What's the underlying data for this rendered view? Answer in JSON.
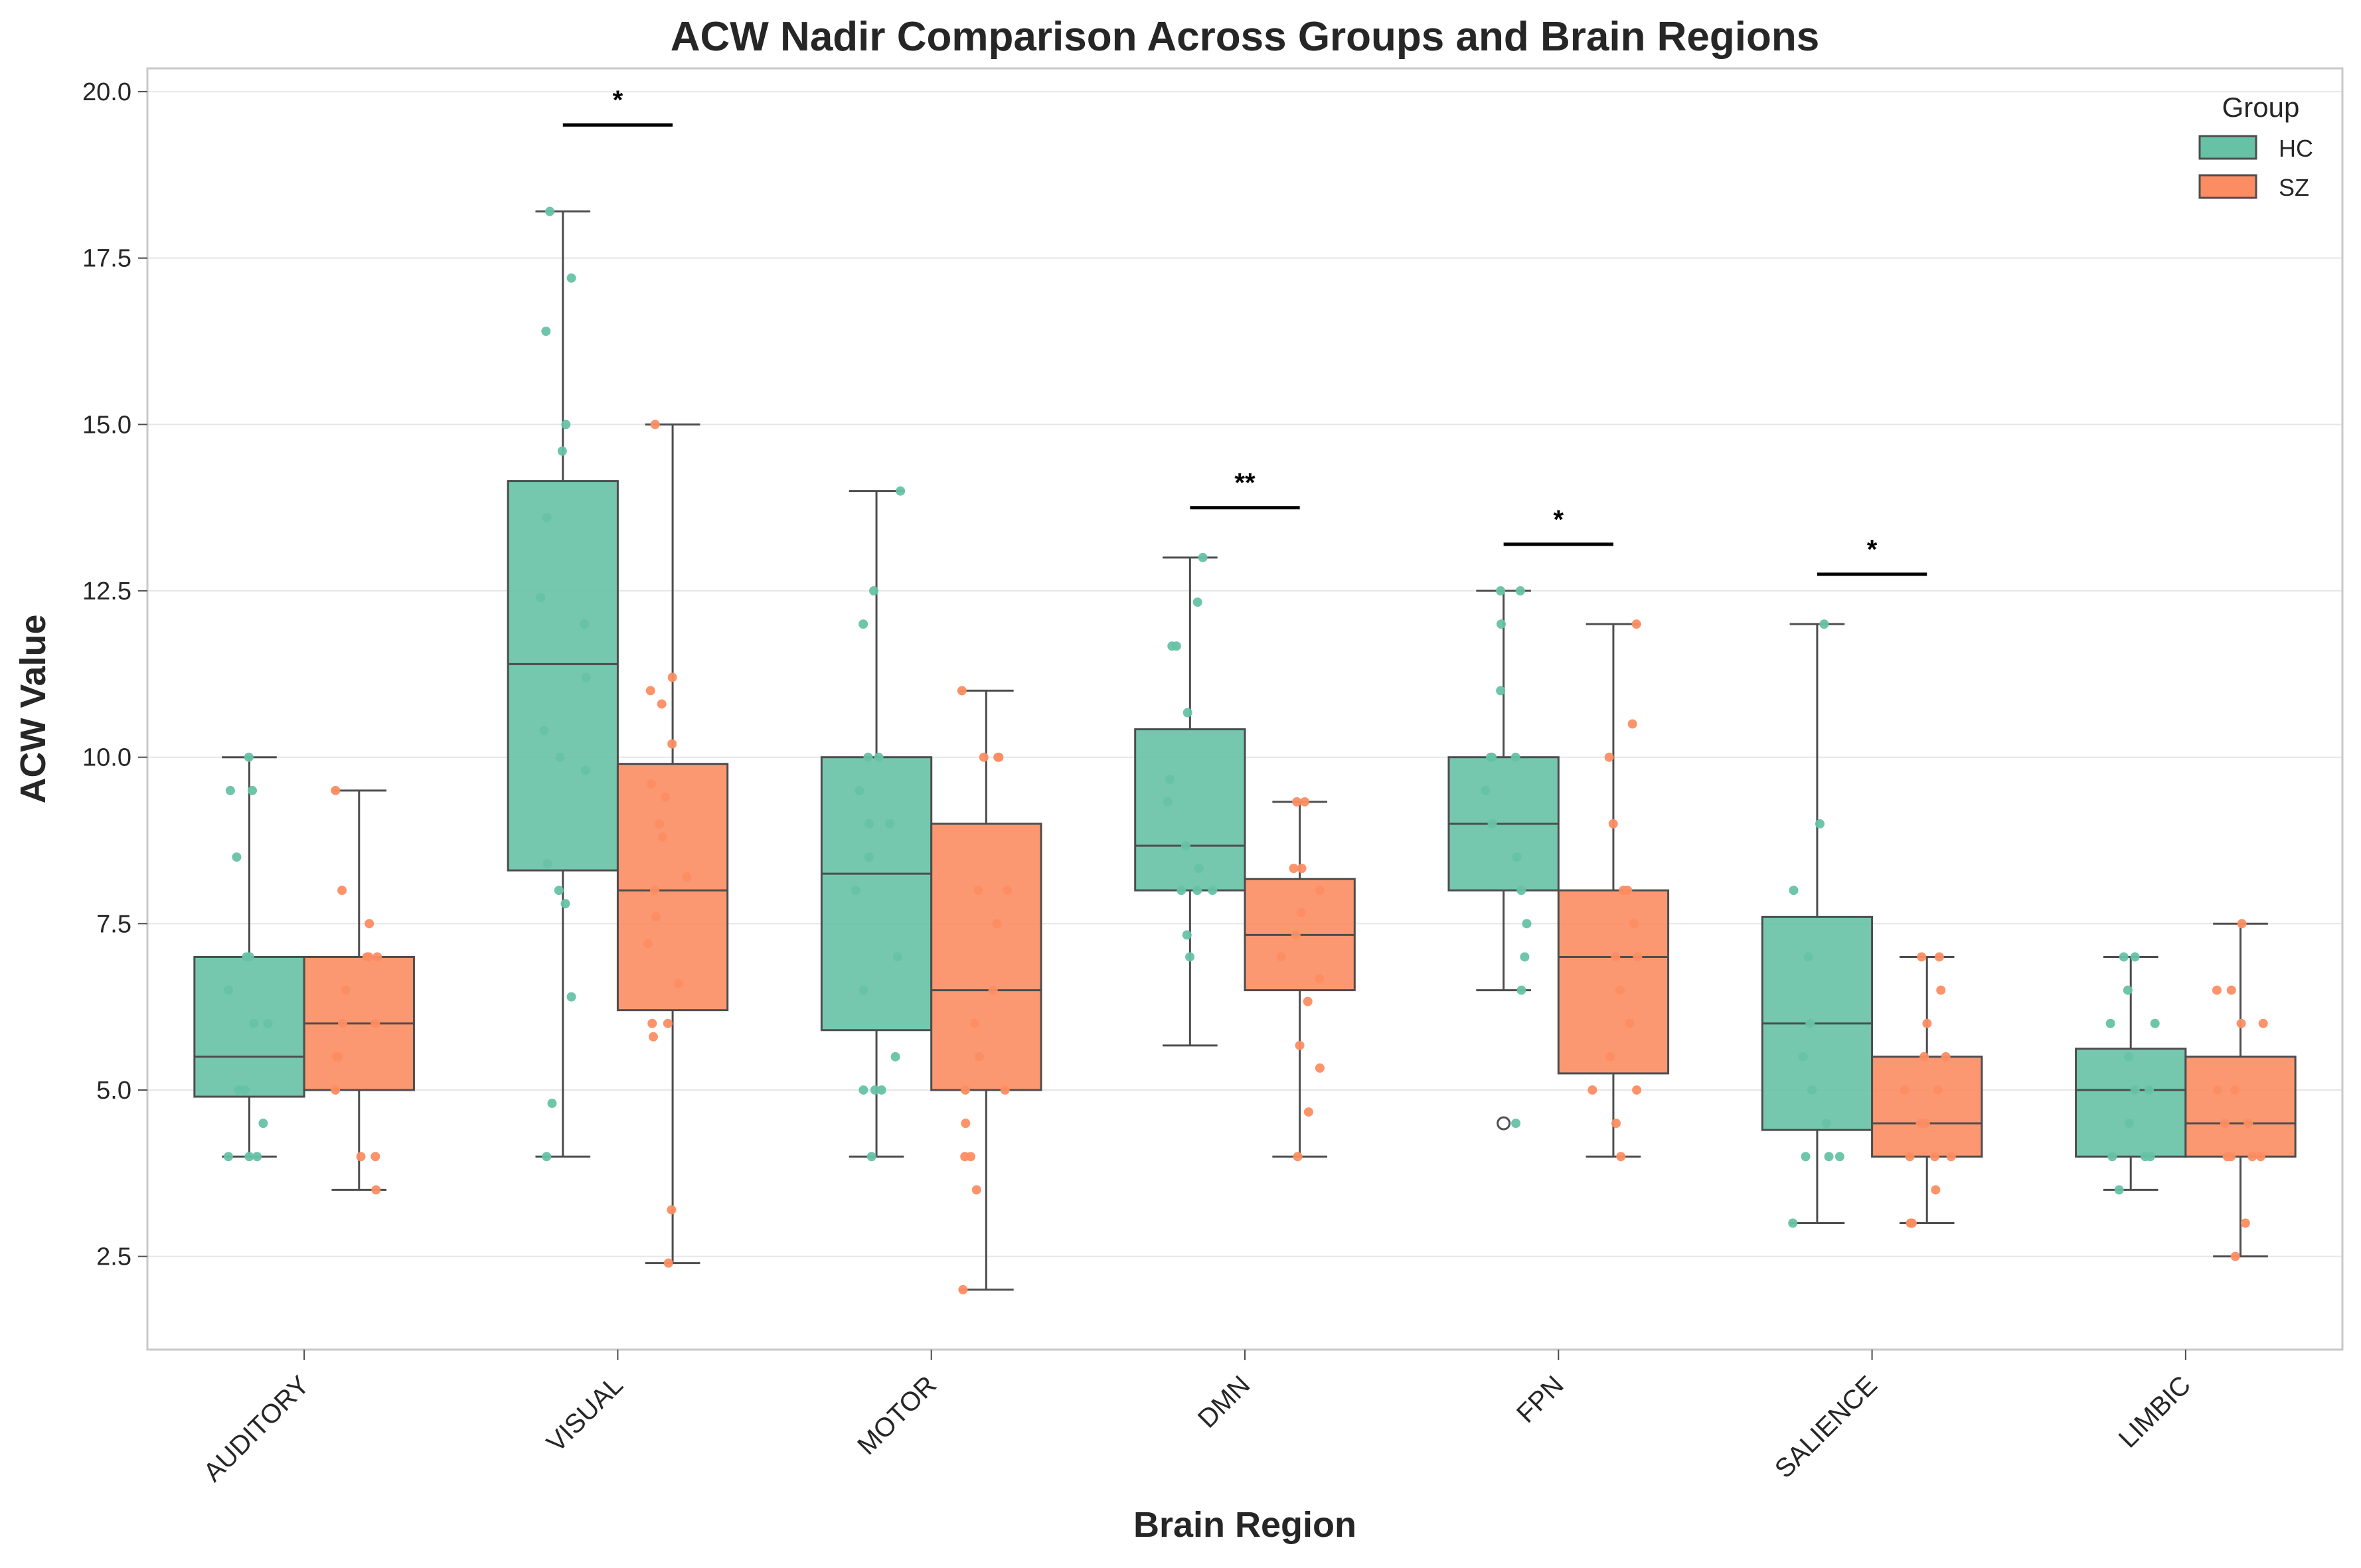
{
  "chart_data": {
    "type": "box",
    "title": "ACW Nadir Comparison Across Groups and Brain Regions",
    "xlabel": "Brain Region",
    "ylabel": "ACW Value",
    "ylim": [
      1.1,
      20.35
    ],
    "yticks": [
      "2.5",
      "5.0",
      "7.5",
      "10.0",
      "12.5",
      "15.0",
      "17.5",
      "20.0"
    ],
    "grid": "horizontal",
    "legend": {
      "title": "Group",
      "placement": "top-right"
    },
    "categories": [
      "AUDITORY",
      "VISUAL",
      "MOTOR",
      "DMN",
      "FPN",
      "SALIENCE",
      "LIMBIC"
    ],
    "series": [
      {
        "name": "HC",
        "color": "#66c2a5",
        "boxes": [
          {
            "q1": 4.9,
            "median": 5.5,
            "q3": 7.0,
            "whisker_low": 4.0,
            "whisker_high": 10.0,
            "outliers": []
          },
          {
            "q1": 8.3,
            "median": 11.4,
            "q3": 14.15,
            "whisker_low": 4.0,
            "whisker_high": 18.2,
            "outliers": []
          },
          {
            "q1": 5.9,
            "median": 8.25,
            "q3": 10.0,
            "whisker_low": 4.0,
            "whisker_high": 14.0,
            "outliers": []
          },
          {
            "q1": 8.0,
            "median": 8.67,
            "q3": 10.42,
            "whisker_low": 5.67,
            "whisker_high": 13.0,
            "outliers": []
          },
          {
            "q1": 8.0,
            "median": 9.0,
            "q3": 10.0,
            "whisker_low": 6.5,
            "whisker_high": 12.5,
            "outliers": [
              4.5
            ]
          },
          {
            "q1": 4.4,
            "median": 6.0,
            "q3": 7.6,
            "whisker_low": 3.0,
            "whisker_high": 12.0,
            "outliers": []
          },
          {
            "q1": 4.0,
            "median": 5.0,
            "q3": 5.62,
            "whisker_low": 3.5,
            "whisker_high": 7.0,
            "outliers": []
          }
        ],
        "points": [
          [
            10.0,
            9.5,
            9.5,
            8.5,
            7.0,
            7.0,
            6.5,
            6.0,
            6.0,
            5.0,
            5.0,
            4.5,
            4.0,
            4.0,
            4.0
          ],
          [
            18.2,
            17.2,
            16.4,
            15.0,
            14.6,
            13.6,
            12.4,
            12.0,
            11.2,
            10.4,
            10.0,
            9.8,
            8.4,
            8.0,
            7.8,
            6.4,
            4.8,
            4.0
          ],
          [
            14.0,
            12.5,
            12.0,
            10.0,
            10.0,
            9.5,
            9.0,
            9.0,
            8.5,
            8.0,
            7.0,
            6.5,
            5.5,
            5.0,
            5.0,
            5.0,
            4.0
          ],
          [
            13.0,
            12.33,
            11.67,
            11.67,
            10.67,
            9.67,
            9.33,
            8.67,
            8.33,
            8.0,
            8.0,
            8.0,
            7.33,
            7.0
          ],
          [
            12.5,
            12.5,
            12.0,
            11.0,
            10.0,
            10.0,
            10.0,
            9.5,
            9.0,
            8.5,
            8.0,
            7.5,
            7.0,
            6.5,
            4.5
          ],
          [
            12.0,
            9.0,
            8.0,
            7.0,
            6.0,
            5.5,
            5.0,
            4.5,
            4.0,
            4.0,
            4.0,
            3.0
          ],
          [
            7.0,
            7.0,
            6.5,
            6.0,
            6.0,
            5.5,
            5.0,
            5.0,
            4.5,
            4.0,
            4.0,
            4.0,
            3.5
          ]
        ]
      },
      {
        "name": "SZ",
        "color": "#fc8d62",
        "boxes": [
          {
            "q1": 5.0,
            "median": 6.0,
            "q3": 7.0,
            "whisker_low": 3.5,
            "whisker_high": 9.5,
            "outliers": []
          },
          {
            "q1": 6.2,
            "median": 8.0,
            "q3": 9.9,
            "whisker_low": 2.4,
            "whisker_high": 15.0,
            "outliers": []
          },
          {
            "q1": 5.0,
            "median": 6.5,
            "q3": 9.0,
            "whisker_low": 2.0,
            "whisker_high": 11.0,
            "outliers": []
          },
          {
            "q1": 6.5,
            "median": 7.33,
            "q3": 8.17,
            "whisker_low": 4.0,
            "whisker_high": 9.33,
            "outliers": []
          },
          {
            "q1": 5.25,
            "median": 7.0,
            "q3": 8.0,
            "whisker_low": 4.0,
            "whisker_high": 12.0,
            "outliers": []
          },
          {
            "q1": 4.0,
            "median": 4.5,
            "q3": 5.5,
            "whisker_low": 3.0,
            "whisker_high": 7.0,
            "outliers": []
          },
          {
            "q1": 4.0,
            "median": 4.5,
            "q3": 5.5,
            "whisker_low": 2.5,
            "whisker_high": 7.5,
            "outliers": []
          }
        ],
        "points": [
          [
            9.5,
            8.0,
            7.5,
            7.0,
            7.0,
            7.0,
            6.5,
            6.0,
            6.0,
            5.5,
            5.5,
            5.0,
            4.0,
            4.0,
            3.5
          ],
          [
            15.0,
            11.2,
            11.0,
            10.8,
            10.2,
            9.6,
            9.4,
            9.0,
            8.8,
            8.2,
            8.0,
            7.6,
            7.2,
            6.6,
            6.0,
            6.0,
            5.8,
            3.2,
            2.4
          ],
          [
            11.0,
            10.0,
            10.0,
            10.0,
            8.0,
            8.0,
            7.5,
            6.5,
            6.0,
            5.5,
            5.0,
            5.0,
            4.5,
            4.0,
            4.0,
            3.5,
            2.0
          ],
          [
            9.33,
            9.33,
            8.33,
            8.33,
            8.0,
            7.67,
            7.33,
            7.0,
            6.67,
            6.33,
            5.67,
            5.33,
            4.67,
            4.0
          ],
          [
            12.0,
            10.5,
            10.0,
            9.0,
            8.0,
            8.0,
            7.5,
            7.0,
            7.0,
            6.5,
            6.0,
            5.5,
            5.0,
            5.0,
            4.5,
            4.0
          ],
          [
            7.0,
            7.0,
            6.5,
            6.0,
            5.5,
            5.5,
            5.0,
            5.0,
            4.5,
            4.5,
            4.0,
            4.0,
            4.0,
            3.5,
            3.0,
            3.0
          ],
          [
            7.5,
            6.5,
            6.5,
            6.0,
            6.0,
            5.0,
            5.0,
            4.5,
            4.5,
            4.0,
            4.0,
            4.0,
            4.0,
            3.0,
            2.5
          ]
        ]
      }
    ],
    "significance": [
      {
        "category": "VISUAL",
        "label": "*",
        "y": 19.5
      },
      {
        "category": "DMN",
        "label": "**",
        "y": 13.75
      },
      {
        "category": "FPN",
        "label": "*",
        "y": 13.2
      },
      {
        "category": "SALIENCE",
        "label": "*",
        "y": 12.75
      }
    ]
  }
}
